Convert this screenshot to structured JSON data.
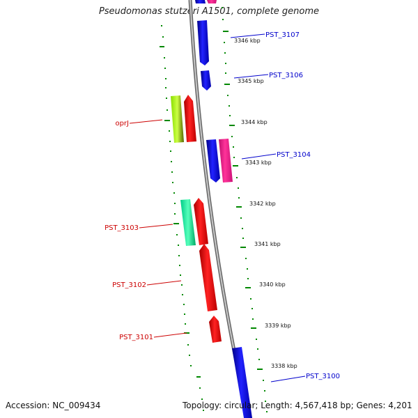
{
  "title": "Pseudomonas stutzeri A1501, complete genome",
  "footer": {
    "accession": "Accession: NC_009434",
    "summary": "Topology: circular; Length: 4,567,418 bp; Genes: 4,201"
  },
  "colors": {
    "forward_gene": "#0000ee",
    "reverse_gene": "#ee0000",
    "pink_gene": "#ff1493",
    "lime_gene": "#aaff22",
    "teal_gene": "#22ffaa",
    "backbone": "#888888",
    "tick": "#008800",
    "forward_label": "#0000cc",
    "reverse_label": "#cc0000"
  },
  "kbp_labels": [
    "3346 kbp",
    "3345 kbp",
    "3344 kbp",
    "3343 kbp",
    "3342 kbp",
    "3341 kbp",
    "3340 kbp",
    "3339 kbp",
    "3338 kbp"
  ],
  "forward_gene_labels": [
    "PST_3107",
    "PST_3106",
    "PST_3104",
    "PST_3100"
  ],
  "reverse_gene_labels": [
    "oprJ",
    "PST_3103",
    "PST_3102",
    "PST_3101"
  ]
}
